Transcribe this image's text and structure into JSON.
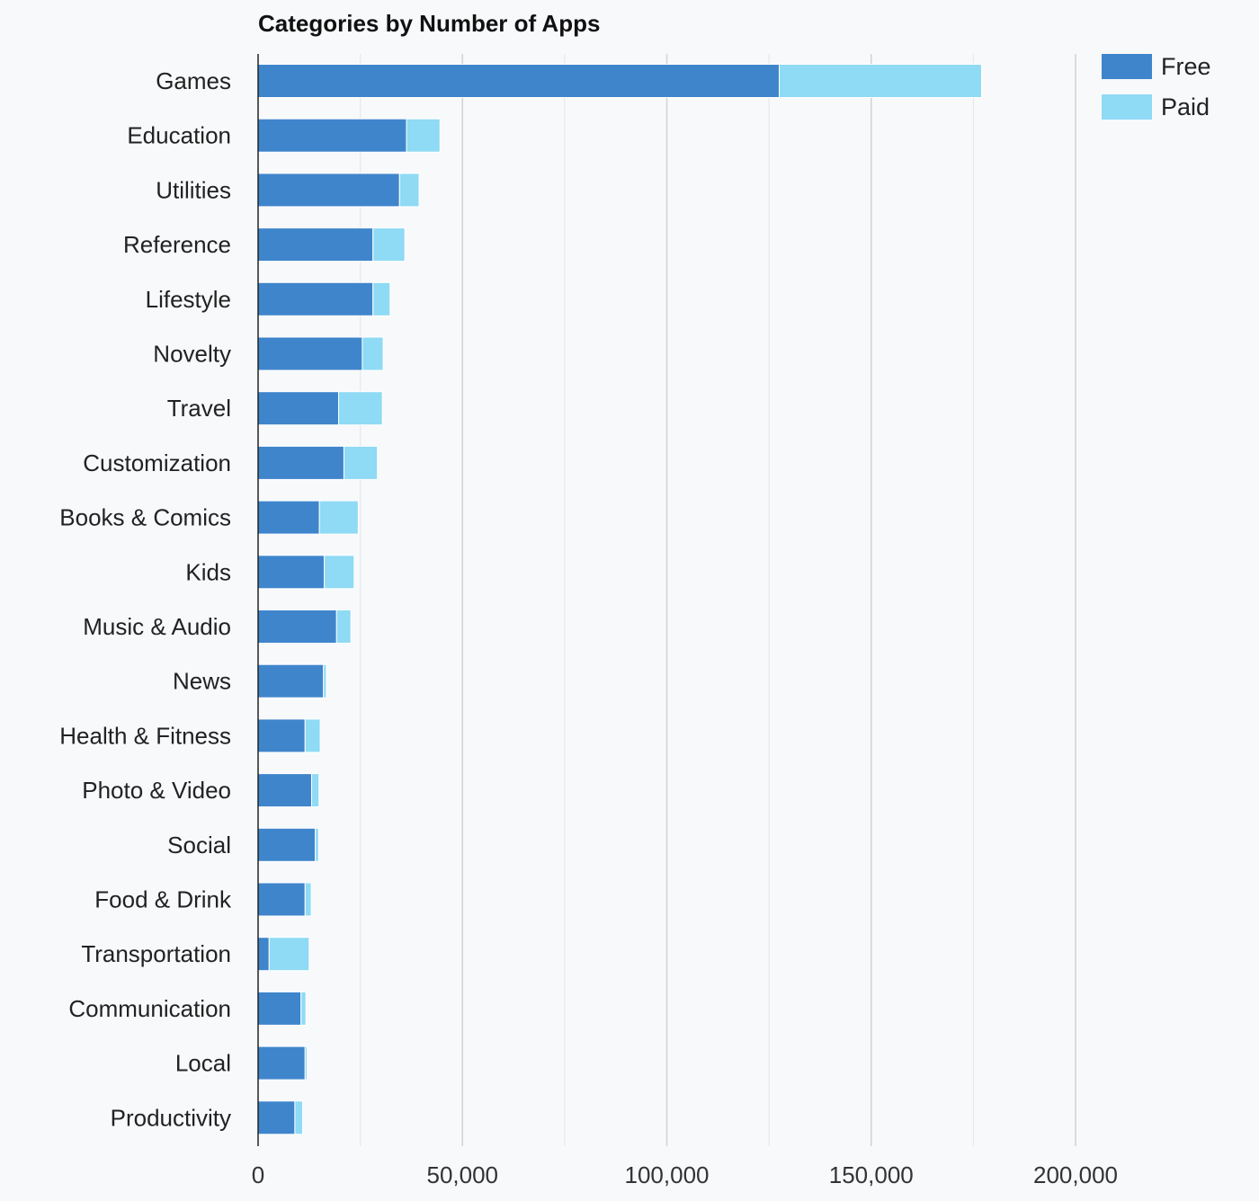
{
  "chart_data": {
    "type": "bar",
    "orientation": "horizontal",
    "stacked": true,
    "title": "Categories by Number of Apps",
    "xlabel": "",
    "ylabel": "",
    "xlim": [
      0,
      200000
    ],
    "xticks": [
      0,
      50000,
      100000,
      150000,
      200000
    ],
    "xtick_labels": [
      "0",
      "50,000",
      "100,000",
      "150,000",
      "200,000"
    ],
    "grid": true,
    "legend_position": "top-right",
    "categories": [
      "Games",
      "Education",
      "Utilities",
      "Reference",
      "Lifestyle",
      "Novelty",
      "Travel",
      "Customization",
      "Books & Comics",
      "Kids",
      "Music & Audio",
      "News",
      "Health & Fitness",
      "Photo & Video",
      "Social",
      "Food & Drink",
      "Transportation",
      "Communication",
      "Local",
      "Productivity"
    ],
    "series": [
      {
        "name": "Free",
        "color": "#3f85cc",
        "values": [
          127500,
          36300,
          34600,
          28100,
          28100,
          25500,
          19700,
          21000,
          15000,
          16200,
          19200,
          16000,
          11500,
          13100,
          14000,
          11500,
          2700,
          10500,
          11500,
          9000
        ]
      },
      {
        "name": "Paid",
        "color": "#8fdaf5",
        "values": [
          49500,
          8200,
          4800,
          7800,
          4200,
          5100,
          10700,
          8200,
          9500,
          7300,
          3500,
          700,
          3700,
          1800,
          800,
          1500,
          9800,
          1200,
          500,
          1900
        ]
      }
    ]
  }
}
